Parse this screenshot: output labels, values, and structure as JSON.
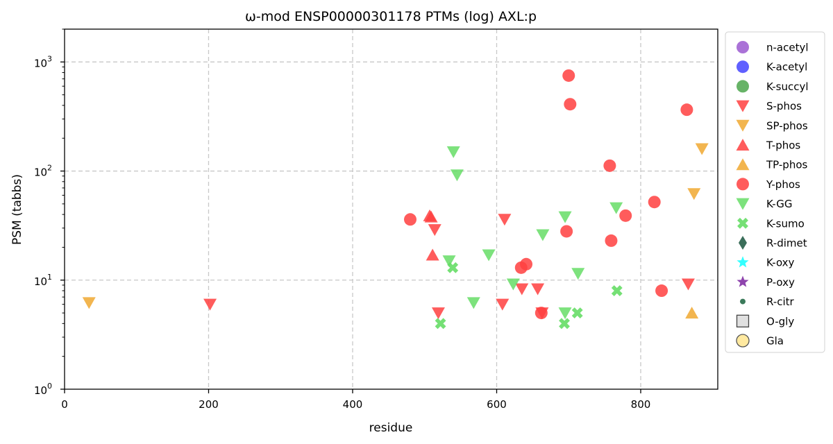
{
  "chart_data": {
    "type": "scatter",
    "title": "ω-mod ENSP00000301178 PTMs (log) AXL:p",
    "xlabel": "residue",
    "ylabel": "PSM (tabbs)",
    "xlim": [
      0,
      907
    ],
    "ylim": [
      1,
      2000
    ],
    "yscale": "log",
    "grid": true,
    "legend_position": "right-outside",
    "x_ticks": [
      0,
      200,
      400,
      600,
      800
    ],
    "y_ticks": [
      {
        "value": 1,
        "base": "10",
        "exp": "0"
      },
      {
        "value": 10,
        "base": "10",
        "exp": "1"
      },
      {
        "value": 100,
        "base": "10",
        "exp": "2"
      },
      {
        "value": 1000,
        "base": "10",
        "exp": "3"
      }
    ],
    "legend": [
      {
        "name": "n-acetyl",
        "marker": "circle",
        "color": "#9b59d0"
      },
      {
        "name": "K-acetyl",
        "marker": "circle",
        "color": "#4444ff"
      },
      {
        "name": "K-succyl",
        "marker": "circle",
        "color": "#4ca64c"
      },
      {
        "name": "S-phos",
        "marker": "triangle-down",
        "color": "#ff4040"
      },
      {
        "name": "SP-phos",
        "marker": "triangle-down",
        "color": "#f0a830"
      },
      {
        "name": "T-phos",
        "marker": "triangle-up",
        "color": "#ff4040"
      },
      {
        "name": "TP-phos",
        "marker": "triangle-up",
        "color": "#f0a830"
      },
      {
        "name": "Y-phos",
        "marker": "circle",
        "color": "#ff4040"
      },
      {
        "name": "K-GG",
        "marker": "triangle-down",
        "color": "#66dd66"
      },
      {
        "name": "K-sumo",
        "marker": "x",
        "color": "#66dd66"
      },
      {
        "name": "R-dimet",
        "marker": "diamond",
        "color": "#3b6e5a"
      },
      {
        "name": "K-oxy",
        "marker": "star",
        "color": "#33ffff"
      },
      {
        "name": "P-oxy",
        "marker": "star",
        "color": "#8e44ad"
      },
      {
        "name": "R-citr",
        "marker": "small-circle",
        "color": "#3b7a5a"
      },
      {
        "name": "O-gly",
        "marker": "square-open",
        "color": "#e0e0e0"
      },
      {
        "name": "Gla",
        "marker": "circle-open",
        "color": "#ffe9a0"
      }
    ],
    "series": [
      {
        "name": "S-phos",
        "marker": "triangle-down",
        "color": "#ff4040",
        "points": [
          [
            202,
            6
          ],
          [
            514,
            29
          ],
          [
            519,
            5
          ],
          [
            611,
            36
          ],
          [
            608,
            6
          ],
          [
            635,
            8.3
          ],
          [
            657,
            8.3
          ],
          [
            663,
            5
          ],
          [
            866,
            9.2
          ]
        ]
      },
      {
        "name": "SP-phos",
        "marker": "triangle-down",
        "color": "#f0a830",
        "points": [
          [
            34,
            6.2
          ],
          [
            874,
            62
          ],
          [
            885,
            160
          ]
        ]
      },
      {
        "name": "T-phos",
        "marker": "triangle-up",
        "color": "#ff4040",
        "points": [
          [
            507,
            39
          ],
          [
            509,
            38
          ],
          [
            511,
            17
          ]
        ]
      },
      {
        "name": "TP-phos",
        "marker": "triangle-up",
        "color": "#f0a830",
        "points": [
          [
            871,
            5
          ]
        ]
      },
      {
        "name": "Y-phos",
        "marker": "circle",
        "color": "#ff4040",
        "points": [
          [
            480,
            36
          ],
          [
            634,
            13
          ],
          [
            641,
            14
          ],
          [
            662,
            5
          ],
          [
            697,
            28
          ],
          [
            700,
            750
          ],
          [
            702,
            410
          ],
          [
            757,
            112
          ],
          [
            759,
            23
          ],
          [
            779,
            39
          ],
          [
            819,
            52
          ],
          [
            829,
            8
          ],
          [
            864,
            365
          ]
        ]
      },
      {
        "name": "K-GG",
        "marker": "triangle-down",
        "color": "#66dd66",
        "points": [
          [
            534,
            15
          ],
          [
            540,
            150
          ],
          [
            545,
            92
          ],
          [
            568,
            6.2
          ],
          [
            589,
            17
          ],
          [
            623,
            9.2
          ],
          [
            664,
            26
          ],
          [
            695,
            38
          ],
          [
            695,
            5
          ],
          [
            713,
            11.5
          ],
          [
            766,
            46
          ]
        ]
      },
      {
        "name": "K-sumo",
        "marker": "x",
        "color": "#66dd66",
        "points": [
          [
            522,
            4
          ],
          [
            539,
            13
          ],
          [
            694,
            4
          ],
          [
            712,
            5
          ],
          [
            767,
            8
          ]
        ]
      }
    ]
  }
}
